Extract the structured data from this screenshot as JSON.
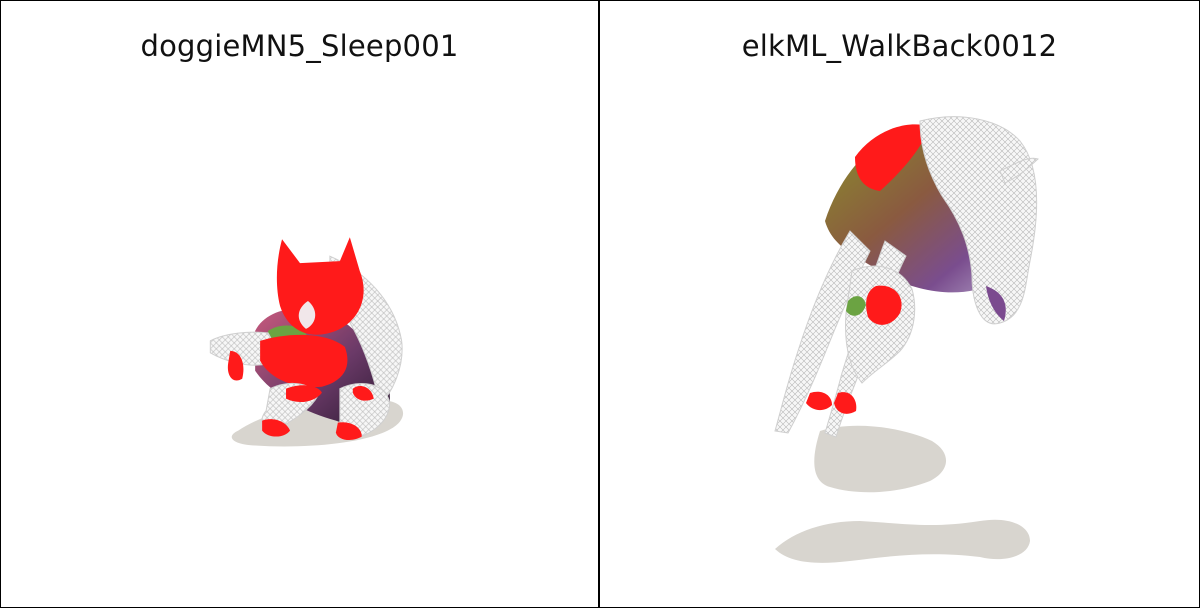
{
  "panels": [
    {
      "title": "doggieMN5_Sleep001"
    },
    {
      "title": "elkML_WalkBack0012"
    }
  ],
  "colors": {
    "background": "#ffffff",
    "shadow": "#d8d5cf",
    "mesh_red": "#ff1a1a",
    "mesh_purple": "#7b4a8f",
    "mesh_green": "#6ba342",
    "mesh_olive": "#8b7d3b",
    "wireframe_white": "#f2f2f2",
    "border": "#000000"
  }
}
